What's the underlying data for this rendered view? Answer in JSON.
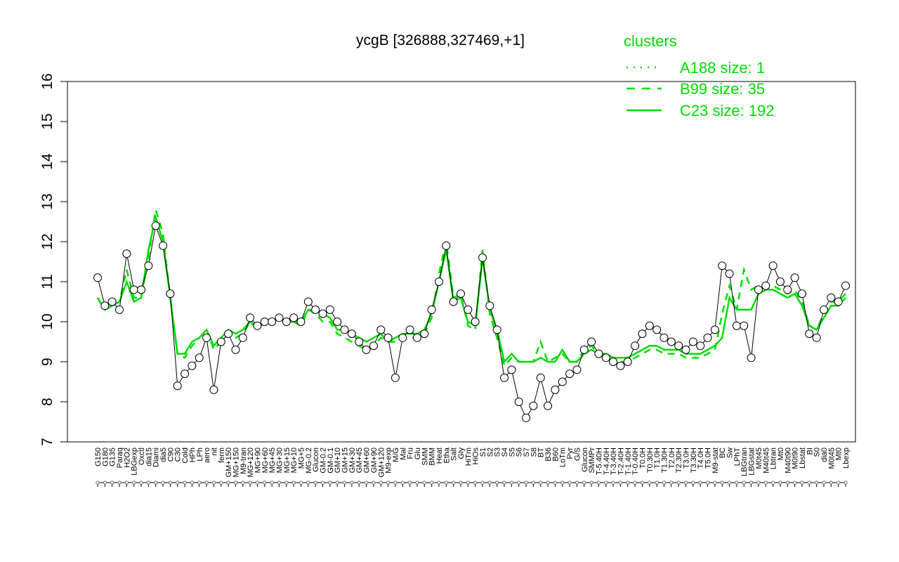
{
  "chart_data": {
    "type": "line",
    "title": "ycgB [326888,327469,+1]",
    "xlabel": "",
    "ylabel": "",
    "ylim": [
      7,
      16
    ],
    "yticks": [
      7,
      8,
      9,
      10,
      11,
      12,
      13,
      14,
      15,
      16
    ],
    "grid": false,
    "x_tick_labels": [
      "G150",
      "G180",
      "G135",
      "Paraq",
      "H2O2",
      "LBGexp",
      "Oxctl",
      "dia15",
      "Diami",
      "dia5",
      "C90",
      "C30",
      "Cold",
      "HPh",
      "LPh",
      "aero",
      "nit",
      "ferm",
      "GM+150",
      "MG+150",
      "M9-tran",
      "MG+120",
      "MG+90",
      "MG+60",
      "MG+45",
      "MG+30",
      "MG+15",
      "MG+10",
      "MG+5",
      "MG-0.2",
      "Glucon",
      "GM-0.2",
      "GM-0.1",
      "GM+10",
      "GM+15",
      "GM+30",
      "GM+45",
      "GM+60",
      "GM+90",
      "GM+120",
      "M9-exp",
      "M/G",
      "Mal",
      "Fru",
      "Glu",
      "SMM",
      "BMM",
      "Heat",
      "Etha",
      "Salt",
      "Gly",
      "HiTm",
      "HiOs",
      "S1",
      "S2",
      "S3",
      "S4",
      "S5",
      "S6",
      "S7",
      "S8",
      "BT",
      "B36",
      "B60",
      "LoTm",
      "Pyr",
      "G/S",
      "Glucon",
      "SMMPr",
      "T-5.40H",
      "T-4.40H",
      "T-3.40H",
      "T-2.40H",
      "T-1.40H",
      "T-0.40H",
      "T0.0H",
      "T0.30H",
      "T1.0H",
      "T1.30H",
      "T2.0H",
      "T2.30H",
      "T3.0H",
      "T3.30H",
      "T4.0H",
      "T5.0H",
      "M9-stat",
      "BC",
      "Sw",
      "LPhT",
      "LBGtran",
      "LBGstat",
      "M0t45",
      "M40t45",
      "Lbtran",
      "Mt0",
      "M40t90",
      "M0t90",
      "Lbstat",
      "BI",
      "S0",
      "dia0",
      "M0t45",
      "Mt0",
      "Lbexp"
    ],
    "legend": {
      "title": "clusters",
      "placement": "top-right",
      "entries": [
        {
          "label": "A188 size: 1",
          "style": "dotted"
        },
        {
          "label": "B99 size: 35",
          "style": "dashed"
        },
        {
          "label": "C23 size: 192",
          "style": "solid"
        }
      ]
    },
    "series_color": "#00dd00",
    "point_series": [
      11.1,
      10.4,
      10.5,
      10.3,
      11.7,
      10.8,
      10.8,
      11.4,
      12.4,
      11.9,
      10.7,
      8.4,
      8.7,
      8.9,
      9.1,
      9.6,
      8.3,
      9.5,
      9.7,
      9.3,
      9.6,
      10.1,
      9.9,
      10.0,
      10.0,
      10.1,
      10.0,
      10.1,
      10.0,
      10.5,
      10.3,
      10.2,
      10.3,
      10.0,
      9.8,
      9.7,
      9.5,
      9.3,
      9.4,
      9.8,
      9.6,
      8.6,
      9.6,
      9.8,
      9.6,
      9.7,
      10.3,
      11.0,
      11.9,
      10.5,
      10.7,
      10.3,
      10.0,
      11.6,
      10.4,
      9.8,
      8.6,
      8.8,
      8.0,
      7.6,
      7.9,
      8.6,
      7.9,
      8.3,
      8.5,
      8.7,
      8.8,
      9.3,
      9.5,
      9.2,
      9.1,
      9.0,
      8.9,
      9.0,
      9.4,
      9.7,
      9.9,
      9.8,
      9.6,
      9.5,
      9.4,
      9.3,
      9.5,
      9.4,
      9.6,
      9.8,
      11.4,
      11.2,
      9.9,
      9.9,
      9.1,
      10.8,
      10.9,
      11.4,
      11.0,
      10.8,
      11.1,
      10.7,
      9.7,
      9.6,
      10.3,
      10.6,
      10.5,
      10.9
    ],
    "line_series": [
      10.6,
      10.3,
      10.4,
      10.5,
      11.0,
      10.5,
      10.6,
      11.8,
      12.6,
      12.0,
      10.6,
      9.2,
      9.2,
      9.5,
      9.6,
      9.8,
      9.4,
      9.6,
      9.8,
      9.7,
      9.8,
      10.0,
      9.9,
      10.0,
      10.0,
      10.1,
      10.0,
      10.0,
      10.0,
      10.3,
      10.3,
      10.2,
      10.1,
      9.8,
      9.8,
      9.7,
      9.6,
      9.5,
      9.6,
      9.7,
      9.5,
      9.6,
      9.7,
      9.7,
      9.7,
      9.8,
      10.2,
      11.0,
      11.8,
      10.5,
      10.6,
      10.0,
      9.9,
      11.6,
      10.3,
      9.8,
      9.0,
      9.2,
      9.0,
      9.0,
      9.0,
      9.1,
      9.0,
      9.0,
      9.3,
      9.0,
      9.0,
      9.2,
      9.3,
      9.2,
      9.2,
      9.1,
      9.1,
      9.1,
      9.2,
      9.3,
      9.4,
      9.4,
      9.3,
      9.3,
      9.3,
      9.2,
      9.2,
      9.2,
      9.3,
      9.4,
      9.6,
      10.6,
      10.3,
      10.3,
      10.3,
      10.7,
      10.8,
      10.8,
      10.7,
      10.6,
      10.7,
      10.4,
      9.9,
      9.8,
      10.1,
      10.4,
      10.4,
      10.6
    ],
    "dashed_series": [
      10.6,
      10.3,
      10.4,
      10.5,
      11.3,
      10.6,
      10.6,
      11.6,
      12.8,
      12.2,
      10.6,
      9.2,
      9.1,
      9.4,
      9.6,
      9.8,
      9.3,
      9.5,
      9.7,
      9.6,
      9.7,
      10.0,
      9.8,
      10.0,
      10.0,
      10.1,
      10.0,
      10.0,
      9.9,
      10.3,
      10.2,
      10.0,
      10.0,
      9.7,
      9.6,
      9.5,
      9.4,
      9.3,
      9.4,
      9.6,
      9.5,
      9.5,
      9.6,
      9.6,
      9.6,
      9.7,
      10.1,
      11.2,
      12.0,
      10.6,
      10.7,
      9.9,
      9.8,
      11.8,
      10.2,
      9.6,
      8.9,
      9.1,
      9.0,
      9.0,
      9.0,
      9.5,
      9.0,
      9.1,
      9.2,
      9.0,
      9.0,
      9.3,
      9.4,
      9.2,
      9.1,
      9.0,
      9.0,
      9.0,
      9.1,
      9.2,
      9.3,
      9.3,
      9.2,
      9.2,
      9.2,
      9.1,
      9.1,
      9.1,
      9.2,
      9.3,
      10.2,
      10.9,
      10.3,
      11.3,
      10.8,
      10.9,
      10.9,
      10.9,
      10.8,
      10.7,
      10.8,
      10.5,
      9.9,
      9.8,
      10.2,
      10.5,
      10.5,
      10.7
    ]
  }
}
